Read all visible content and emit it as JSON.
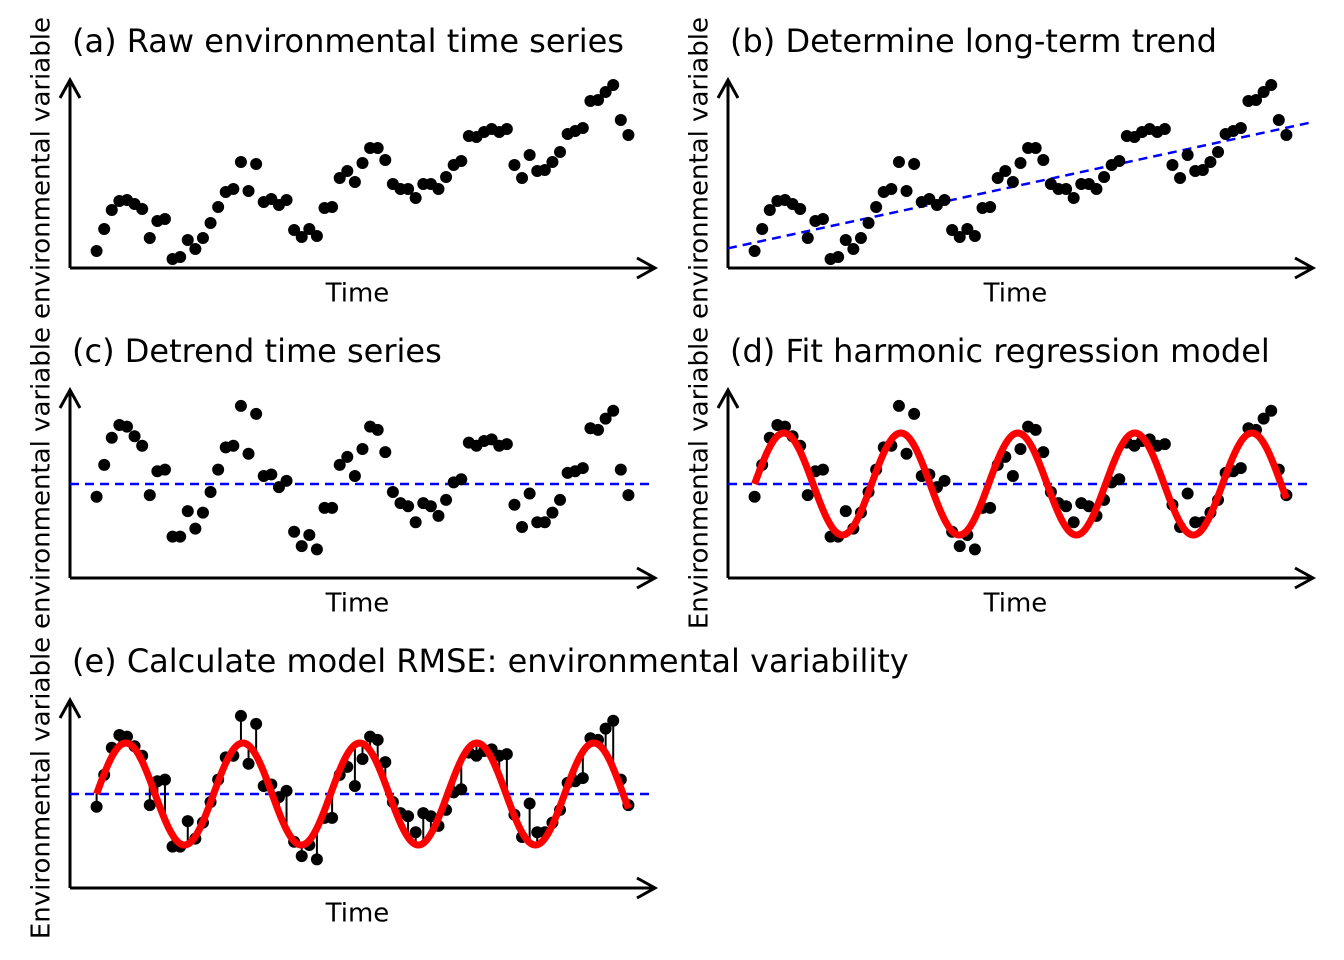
{
  "chart_data": [
    {
      "type": "scatter",
      "title": "(a) Raw environmental time series",
      "xlabel": "Time",
      "ylabel": "environmental variable",
      "x": [
        1,
        2,
        3,
        4,
        5,
        6,
        7,
        8,
        9,
        10,
        11,
        12,
        13,
        14,
        15,
        16,
        17,
        18,
        19,
        20,
        21,
        22,
        23,
        24,
        25,
        26,
        27,
        28,
        29,
        30,
        31,
        32,
        33,
        34,
        35,
        36,
        37,
        38,
        39,
        40,
        41,
        42,
        43,
        44,
        45,
        46,
        47,
        48,
        49,
        50,
        51,
        52,
        53,
        54,
        55,
        56,
        57,
        58,
        59,
        60,
        61,
        62,
        63,
        64,
        65,
        66,
        67,
        68,
        69,
        70,
        71
      ],
      "values": [
        1.7,
        3.9,
        5.8,
        6.7,
        6.8,
        6.4,
        5.9,
        3.0,
        4.7,
        4.9,
        0.9,
        1.1,
        2.8,
        1.9,
        3.0,
        4.5,
        6.1,
        7.6,
        7.9,
        10.6,
        7.7,
        10.4,
        6.6,
        6.9,
        6.3,
        6.8,
        3.8,
        3.1,
        3.9,
        3.2,
        6.0,
        6.1,
        9.0,
        9.7,
        8.6,
        10.5,
        12.0,
        12.0,
        10.8,
        8.4,
        7.9,
        7.9,
        7.0,
        8.4,
        8.4,
        7.9,
        9.1,
        10.3,
        10.7,
        13.2,
        13.1,
        13.6,
        13.9,
        13.6,
        13.9,
        10.3,
        9.0,
        11.3,
        9.7,
        9.8,
        10.6,
        11.6,
        13.4,
        13.7,
        14.0,
        16.7,
        16.8,
        17.6,
        18.3,
        14.8,
        13.3
      ],
      "color": "#000000",
      "xlim": [
        -2.5,
        74.5
      ],
      "ylim": [
        0,
        18.8
      ]
    },
    {
      "type": "scatter",
      "title": "(b) Determine long-term trend",
      "xlabel": "Time",
      "ylabel": "environmental variable",
      "x": [
        1,
        2,
        3,
        4,
        5,
        6,
        7,
        8,
        9,
        10,
        11,
        12,
        13,
        14,
        15,
        16,
        17,
        18,
        19,
        20,
        21,
        22,
        23,
        24,
        25,
        26,
        27,
        28,
        29,
        30,
        31,
        32,
        33,
        34,
        35,
        36,
        37,
        38,
        39,
        40,
        41,
        42,
        43,
        44,
        45,
        46,
        47,
        48,
        49,
        50,
        51,
        52,
        53,
        54,
        55,
        56,
        57,
        58,
        59,
        60,
        61,
        62,
        63,
        64,
        65,
        66,
        67,
        68,
        69,
        70,
        71
      ],
      "values": [
        1.7,
        3.9,
        5.8,
        6.7,
        6.8,
        6.4,
        5.9,
        3.0,
        4.7,
        4.9,
        0.9,
        1.1,
        2.8,
        1.9,
        3.0,
        4.5,
        6.1,
        7.6,
        7.9,
        10.6,
        7.7,
        10.4,
        6.6,
        6.9,
        6.3,
        6.8,
        3.8,
        3.1,
        3.9,
        3.2,
        6.0,
        6.1,
        9.0,
        9.7,
        8.6,
        10.5,
        12.0,
        12.0,
        10.8,
        8.4,
        7.9,
        7.9,
        7.0,
        8.4,
        8.4,
        7.9,
        9.1,
        10.3,
        10.7,
        13.2,
        13.1,
        13.6,
        13.9,
        13.6,
        13.9,
        10.3,
        9.0,
        11.3,
        9.7,
        9.8,
        10.6,
        11.6,
        13.4,
        13.7,
        14.0,
        16.7,
        16.8,
        17.6,
        18.3,
        14.8,
        13.3
      ],
      "color": "#000000",
      "xlim": [
        -2.5,
        74.5
      ],
      "ylim": [
        0,
        18.8
      ],
      "trend": {
        "intercept": 2.38,
        "slope": 0.164,
        "color": "#0000ff"
      }
    },
    {
      "type": "scatter",
      "title": "(c) Detrend time series",
      "xlabel": "Time",
      "ylabel": "environmental variable",
      "x": [
        1,
        2,
        3,
        4,
        5,
        6,
        7,
        8,
        9,
        10,
        11,
        12,
        13,
        14,
        15,
        16,
        17,
        18,
        19,
        20,
        21,
        22,
        23,
        24,
        25,
        26,
        27,
        28,
        29,
        30,
        31,
        32,
        33,
        34,
        35,
        36,
        37,
        38,
        39,
        40,
        41,
        42,
        43,
        44,
        45,
        46,
        47,
        48,
        49,
        50,
        51,
        52,
        53,
        54,
        55,
        56,
        57,
        58,
        59,
        60,
        61,
        62,
        63,
        64,
        65,
        66,
        67,
        68,
        69,
        70,
        71
      ],
      "values": [
        -0.8,
        1.2,
        2.9,
        3.7,
        3.6,
        3.0,
        2.4,
        -0.7,
        0.8,
        0.9,
        -3.3,
        -3.3,
        -1.7,
        -2.8,
        -1.8,
        -0.5,
        0.9,
        2.3,
        2.4,
        4.9,
        1.9,
        4.4,
        0.5,
        0.6,
        -0.2,
        0.2,
        -3.0,
        -3.9,
        -3.2,
        -4.1,
        -1.5,
        -1.5,
        1.2,
        1.7,
        0.5,
        2.2,
        3.6,
        3.4,
        2.0,
        -0.5,
        -1.2,
        -1.4,
        -2.4,
        -1.2,
        -1.4,
        -2.0,
        -1.0,
        0.1,
        0.3,
        2.6,
        2.4,
        2.7,
        2.8,
        2.4,
        2.5,
        -1.3,
        -2.7,
        -0.6,
        -2.4,
        -2.4,
        -1.8,
        -1.0,
        0.7,
        0.8,
        1.0,
        3.5,
        3.4,
        4.1,
        4.6,
        0.9,
        -0.7
      ],
      "color": "#000000",
      "xlim": [
        -2.5,
        74.5
      ],
      "ylim": [
        -5.9,
        5.9
      ],
      "hline": {
        "value": 0,
        "color": "#0000ff"
      }
    },
    {
      "type": "scatter",
      "title": "(d) Fit harmonic regression model",
      "xlabel": "Time",
      "ylabel": "Environmental variable",
      "x": [
        1,
        2,
        3,
        4,
        5,
        6,
        7,
        8,
        9,
        10,
        11,
        12,
        13,
        14,
        15,
        16,
        17,
        18,
        19,
        20,
        21,
        22,
        23,
        24,
        25,
        26,
        27,
        28,
        29,
        30,
        31,
        32,
        33,
        34,
        35,
        36,
        37,
        38,
        39,
        40,
        41,
        42,
        43,
        44,
        45,
        46,
        47,
        48,
        49,
        50,
        51,
        52,
        53,
        54,
        55,
        56,
        57,
        58,
        59,
        60,
        61,
        62,
        63,
        64,
        65,
        66,
        67,
        68,
        69,
        70,
        71
      ],
      "values": [
        -0.8,
        1.2,
        2.9,
        3.7,
        3.6,
        3.0,
        2.4,
        -0.7,
        0.8,
        0.9,
        -3.3,
        -3.3,
        -1.7,
        -2.8,
        -1.8,
        -0.5,
        0.9,
        2.3,
        2.4,
        4.9,
        1.9,
        4.4,
        0.5,
        0.6,
        -0.2,
        0.2,
        -3.0,
        -3.9,
        -3.2,
        -4.1,
        -1.5,
        -1.5,
        1.2,
        1.7,
        0.5,
        2.2,
        3.6,
        3.4,
        2.0,
        -0.5,
        -1.2,
        -1.4,
        -2.4,
        -1.2,
        -1.4,
        -2.0,
        -1.0,
        0.1,
        0.3,
        2.6,
        2.4,
        2.7,
        2.8,
        2.4,
        2.5,
        -1.3,
        -2.7,
        -0.6,
        -2.4,
        -2.4,
        -1.8,
        -1.0,
        0.7,
        0.8,
        1.0,
        3.5,
        3.4,
        4.1,
        4.6,
        0.9,
        -0.7
      ],
      "color": "#000000",
      "xlim": [
        -2.5,
        74.5
      ],
      "ylim": [
        -5.9,
        5.9
      ],
      "hline": {
        "value": 0,
        "color": "#0000ff"
      },
      "harmonic_fit": {
        "amplitude": 3.2,
        "period": 15.4,
        "phase": 1,
        "color": "#ff0000"
      }
    },
    {
      "type": "scatter",
      "title": "(e) Calculate model RMSE: environmental variability",
      "xlabel": "Time",
      "ylabel": "Environmental variable",
      "x": [
        1,
        2,
        3,
        4,
        5,
        6,
        7,
        8,
        9,
        10,
        11,
        12,
        13,
        14,
        15,
        16,
        17,
        18,
        19,
        20,
        21,
        22,
        23,
        24,
        25,
        26,
        27,
        28,
        29,
        30,
        31,
        32,
        33,
        34,
        35,
        36,
        37,
        38,
        39,
        40,
        41,
        42,
        43,
        44,
        45,
        46,
        47,
        48,
        49,
        50,
        51,
        52,
        53,
        54,
        55,
        56,
        57,
        58,
        59,
        60,
        61,
        62,
        63,
        64,
        65,
        66,
        67,
        68,
        69,
        70,
        71
      ],
      "values": [
        -0.8,
        1.2,
        2.9,
        3.7,
        3.6,
        3.0,
        2.4,
        -0.7,
        0.8,
        0.9,
        -3.3,
        -3.3,
        -1.7,
        -2.8,
        -1.8,
        -0.5,
        0.9,
        2.3,
        2.4,
        4.9,
        1.9,
        4.4,
        0.5,
        0.6,
        -0.2,
        0.2,
        -3.0,
        -3.9,
        -3.2,
        -4.1,
        -1.5,
        -1.5,
        1.2,
        1.7,
        0.5,
        2.2,
        3.6,
        3.4,
        2.0,
        -0.5,
        -1.2,
        -1.4,
        -2.4,
        -1.2,
        -1.4,
        -2.0,
        -1.0,
        0.1,
        0.3,
        2.6,
        2.4,
        2.7,
        2.8,
        2.4,
        2.5,
        -1.3,
        -2.7,
        -0.6,
        -2.4,
        -2.4,
        -1.8,
        -1.0,
        0.7,
        0.8,
        1.0,
        3.5,
        3.4,
        4.1,
        4.6,
        0.9,
        -0.7
      ],
      "color": "#000000",
      "xlim": [
        -2.5,
        74.5
      ],
      "ylim": [
        -5.9,
        5.9
      ],
      "hline": {
        "value": 0,
        "color": "#0000ff"
      },
      "harmonic_fit": {
        "amplitude": 3.2,
        "period": 15.4,
        "phase": 1,
        "color": "#ff0000"
      },
      "residual_lines": true
    }
  ]
}
